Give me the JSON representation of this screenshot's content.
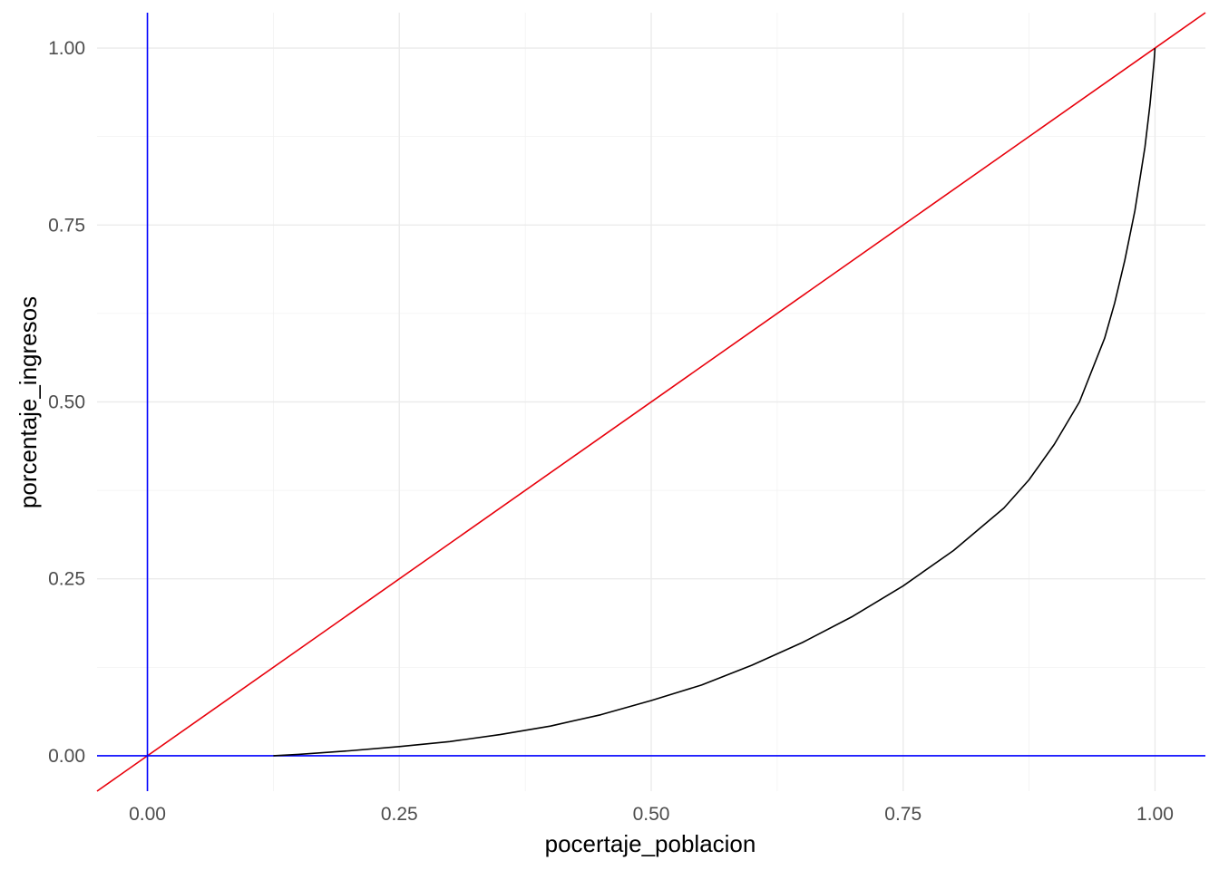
{
  "chart_data": {
    "type": "line",
    "xlabel": "pocertaje_poblacion",
    "ylabel": "porcentaje_ingresos",
    "xlim": [
      -0.05,
      1.05
    ],
    "ylim": [
      -0.05,
      1.05
    ],
    "x_ticks": [
      0,
      0.25,
      0.5,
      0.75,
      1.0
    ],
    "x_tick_labels": [
      "0.00",
      "0.25",
      "0.50",
      "0.75",
      "1.00"
    ],
    "y_ticks": [
      0,
      0.25,
      0.5,
      0.75,
      1.0
    ],
    "y_tick_labels": [
      "0.00",
      "0.25",
      "0.50",
      "0.75",
      "1.00"
    ],
    "grid": true,
    "series": [
      {
        "color": "#000000",
        "x": [
          0.125,
          0.15,
          0.2,
          0.25,
          0.3,
          0.35,
          0.4,
          0.45,
          0.5,
          0.55,
          0.6,
          0.65,
          0.7,
          0.75,
          0.8,
          0.85,
          0.875,
          0.9,
          0.925,
          0.95,
          0.96,
          0.97,
          0.98,
          0.99,
          0.995,
          0.999,
          1.0
        ],
        "y": [
          0.0,
          0.002,
          0.007,
          0.013,
          0.02,
          0.03,
          0.042,
          0.058,
          0.078,
          0.1,
          0.128,
          0.16,
          0.197,
          0.24,
          0.29,
          0.35,
          0.39,
          0.44,
          0.5,
          0.59,
          0.64,
          0.7,
          0.77,
          0.86,
          0.92,
          0.98,
          1.0
        ]
      }
    ],
    "reference_lines": [
      {
        "type": "abline",
        "intercept": 0,
        "slope": 1,
        "color": "#e8000b"
      },
      {
        "type": "vline",
        "x": 0,
        "color": "#0000ff"
      },
      {
        "type": "hline",
        "y": 0,
        "color": "#0000ff"
      }
    ]
  }
}
